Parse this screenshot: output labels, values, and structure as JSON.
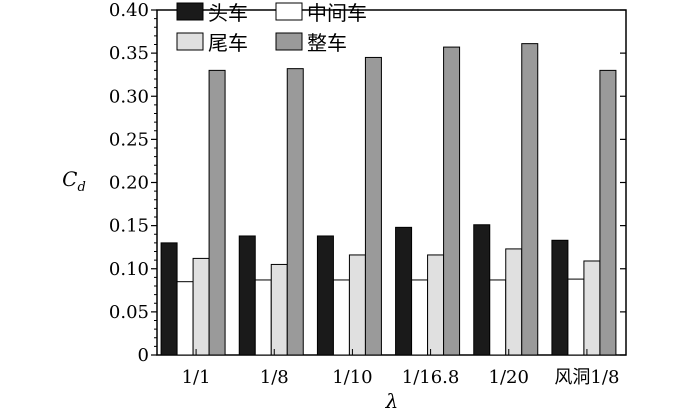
{
  "chart_data": {
    "type": "bar",
    "title": "",
    "xlabel": "λ",
    "ylabel": "C",
    "ylabel_subscript": "d",
    "ylim": [
      0,
      0.4
    ],
    "yticks": [
      "0",
      "0.05",
      "0.10",
      "0.15",
      "0.20",
      "0.25",
      "0.30",
      "0.35",
      "0.40"
    ],
    "ytick_values": [
      0,
      0.05,
      0.1,
      0.15,
      0.2,
      0.25,
      0.3,
      0.35,
      0.4
    ],
    "categories": [
      "1/1",
      "1/8",
      "1/10",
      "1/16.8",
      "1/20",
      "风洞1/8"
    ],
    "grid": false,
    "legend_position": "top-left",
    "series": [
      {
        "name": "头车",
        "color": "#1a1a1a",
        "values": [
          0.13,
          0.138,
          0.138,
          0.148,
          0.151,
          0.133
        ]
      },
      {
        "name": "中间车",
        "color": "#ffffff",
        "values": [
          0.085,
          0.087,
          0.087,
          0.087,
          0.087,
          0.088
        ]
      },
      {
        "name": "尾车",
        "color": "#e0e0e0",
        "values": [
          0.112,
          0.105,
          0.116,
          0.116,
          0.123,
          0.109
        ]
      },
      {
        "name": "整车",
        "color": "#9a9a9a",
        "values": [
          0.33,
          0.332,
          0.345,
          0.357,
          0.361,
          0.33
        ]
      }
    ]
  }
}
